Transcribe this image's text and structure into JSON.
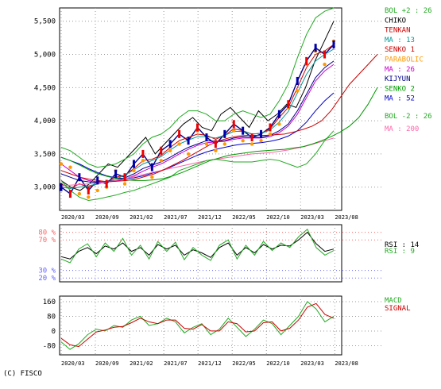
{
  "copyright": "(C) FISCO",
  "chart_data": [
    {
      "type": "line",
      "panel": "price",
      "title": "",
      "xlabel": "",
      "ylabel": "",
      "x_ticks": [
        "2020/03",
        "2020/09",
        "2021/02",
        "2021/07",
        "2021/12",
        "2022/05",
        "2022/10",
        "2023/03",
        "2023/08"
      ],
      "y_ticks": [
        3000,
        3500,
        4000,
        4500,
        5000,
        5500
      ],
      "y_tick_labels": [
        "3,000",
        "3,500",
        "4,000",
        "4,500",
        "5,000",
        "5,500"
      ],
      "ylim": [
        2650,
        5700
      ],
      "grid": true,
      "legend_position": "right",
      "legend": [
        {
          "label": "BOL +2 : 26",
          "color": "#22aa22"
        },
        {
          "label": "CHIKO",
          "color": "#000000"
        },
        {
          "label": "TENKAN",
          "color": "#cc0000"
        },
        {
          "label": "MA : 13",
          "color": "#009999"
        },
        {
          "label": "SENKO 1",
          "color": "#cc0000"
        },
        {
          "label": "PARABOLIC",
          "color": "#ff9900"
        },
        {
          "label": "MA : 26",
          "color": "#cc00cc"
        },
        {
          "label": "KIJYUN",
          "color": "#000088"
        },
        {
          "label": "SENKO 2",
          "color": "#009900"
        },
        {
          "label": "MA : 52",
          "color": "#0000cc"
        },
        {
          "label": "BOL -2 : 26",
          "color": "#22aa22"
        },
        {
          "label": "MA : 200",
          "color": "#ff66aa"
        }
      ],
      "series": [
        {
          "name": "CHIKO",
          "color": "#000000",
          "values": [
            3100,
            3000,
            2950,
            3050,
            3200,
            3350,
            3300,
            3450,
            3600,
            3750,
            3500,
            3650,
            3800,
            3950,
            4050,
            3900,
            3850,
            4100,
            4200,
            4050,
            3900,
            4150,
            4000,
            4100,
            4250,
            4200,
            4500,
            4900,
            5200,
            5500
          ]
        },
        {
          "name": "PRICE",
          "color": "#000088",
          "values": [
            3000,
            2900,
            3150,
            2950,
            3100,
            3050,
            3200,
            3150,
            3350,
            3500,
            3300,
            3550,
            3650,
            3800,
            3700,
            3900,
            3750,
            3650,
            3800,
            3950,
            3850,
            3750,
            3800,
            3900,
            4100,
            4250,
            4600,
            4900,
            5100,
            5000,
            5150
          ]
        },
        {
          "name": "TENKAN",
          "color": "#cc0000",
          "values": [
            3050,
            2980,
            3050,
            3000,
            3050,
            3080,
            3150,
            3180,
            3280,
            3400,
            3420,
            3480,
            3600,
            3700,
            3750,
            3800,
            3780,
            3720,
            3780,
            3880,
            3850,
            3800,
            3810,
            3880,
            4050,
            4200,
            4500,
            4800,
            5000,
            5050,
            5150
          ]
        },
        {
          "name": "MA : 13",
          "color": "#009999",
          "values": [
            3000,
            2980,
            3000,
            3020,
            3050,
            3080,
            3120,
            3180,
            3260,
            3350,
            3400,
            3460,
            3560,
            3650,
            3710,
            3760,
            3760,
            3740,
            3780,
            3840,
            3840,
            3800,
            3810,
            3860,
            3980,
            4140,
            4420,
            4700,
            4900,
            5000,
            5080
          ]
        },
        {
          "name": "KIJYUN",
          "color": "#000088",
          "values": [
            3200,
            3150,
            3100,
            3080,
            3070,
            3090,
            3100,
            3140,
            3200,
            3280,
            3330,
            3380,
            3450,
            3530,
            3600,
            3650,
            3700,
            3690,
            3700,
            3740,
            3760,
            3750,
            3750,
            3780,
            3850,
            3950,
            4150,
            4400,
            4650,
            4800,
            4900
          ]
        },
        {
          "name": "MA : 26",
          "color": "#cc00cc",
          "values": [
            3350,
            3250,
            3150,
            3100,
            3080,
            3080,
            3090,
            3120,
            3170,
            3240,
            3300,
            3350,
            3420,
            3500,
            3570,
            3630,
            3670,
            3680,
            3690,
            3720,
            3740,
            3740,
            3740,
            3760,
            3820,
            3920,
            4100,
            4350,
            4600,
            4750,
            4850
          ]
        },
        {
          "name": "MA : 52",
          "color": "#0000cc",
          "values": [
            3450,
            3400,
            3350,
            3280,
            3220,
            3170,
            3140,
            3130,
            3140,
            3170,
            3210,
            3250,
            3300,
            3360,
            3420,
            3480,
            3530,
            3570,
            3600,
            3630,
            3650,
            3660,
            3670,
            3690,
            3720,
            3770,
            3850,
            3980,
            4150,
            4300,
            4420
          ]
        },
        {
          "name": "MA : 200",
          "color": "#ff66aa",
          "values": [
            3020,
            3030,
            3040,
            3050,
            3060,
            3080,
            3100,
            3130,
            3160,
            3190,
            3220,
            3250,
            3280,
            3310,
            3340,
            3370,
            3400,
            3420,
            3440,
            3460,
            3480,
            3500,
            3510,
            3520,
            3540,
            3560,
            3590,
            3620,
            3660,
            3700,
            3740
          ]
        },
        {
          "name": "BOL +2 : 26",
          "color": "#22aa22",
          "values": [
            3600,
            3550,
            3450,
            3350,
            3300,
            3320,
            3350,
            3420,
            3500,
            3650,
            3750,
            3800,
            3900,
            4050,
            4150,
            4150,
            4100,
            4000,
            4000,
            4100,
            4150,
            4100,
            4050,
            4100,
            4300,
            4550,
            4950,
            5300,
            5550,
            5650,
            5700
          ]
        },
        {
          "name": "BOL -2 : 26",
          "color": "#22aa22",
          "values": [
            3100,
            2950,
            2850,
            2800,
            2820,
            2850,
            2880,
            2920,
            2950,
            3000,
            3050,
            3100,
            3150,
            3250,
            3300,
            3350,
            3400,
            3420,
            3400,
            3380,
            3380,
            3380,
            3400,
            3420,
            3400,
            3350,
            3300,
            3350,
            3500,
            3700,
            3850
          ]
        },
        {
          "name": "SENKO 1",
          "color": "#cc0000",
          "values": [
            3250,
            3200,
            3150,
            3120,
            3100,
            3080,
            3090,
            3100,
            3120,
            3160,
            3200,
            3260,
            3330,
            3400,
            3480,
            3560,
            3640,
            3700,
            3740,
            3770,
            3780,
            3780,
            3780,
            3790,
            3800,
            3830,
            3870,
            3920,
            4000,
            4150,
            4350,
            4550,
            4700,
            4850,
            5000
          ]
        },
        {
          "name": "SENKO 2",
          "color": "#009900",
          "values": [
            3450,
            3400,
            3330,
            3260,
            3200,
            3160,
            3130,
            3110,
            3100,
            3100,
            3110,
            3130,
            3170,
            3220,
            3280,
            3340,
            3400,
            3440,
            3480,
            3500,
            3520,
            3540,
            3550,
            3560,
            3570,
            3590,
            3610,
            3650,
            3700,
            3760,
            3830,
            3920,
            4050,
            4250,
            4500
          ]
        },
        {
          "name": "PARABOLIC",
          "color": "#ff9900",
          "values": [
            3350,
            3300,
            2900,
            2850,
            2950,
            3000,
            3250,
            3050,
            3250,
            3400,
            3150,
            3400,
            3550,
            3650,
            3500,
            3850,
            3650,
            3550,
            3650,
            3850,
            3700,
            3650,
            3700,
            3800,
            3950,
            4200,
            4450,
            4850,
            5050,
            4850,
            5200
          ]
        }
      ]
    },
    {
      "type": "line",
      "panel": "rsi",
      "x_ticks": [],
      "y_ticks": [
        20,
        30,
        70,
        80
      ],
      "y_tick_labels": [
        "20 %",
        "30 %",
        "70 %",
        "80 %"
      ],
      "ylim": [
        15,
        90
      ],
      "grid": true,
      "legend_position": "right",
      "legend": [
        {
          "label": "RSI : 14",
          "color": "#000000"
        },
        {
          "label": "RSI : 9",
          "color": "#22aa22"
        }
      ],
      "series": [
        {
          "name": "RSI : 14",
          "color": "#000000",
          "values": [
            48,
            45,
            55,
            60,
            52,
            62,
            58,
            66,
            55,
            60,
            50,
            64,
            58,
            63,
            50,
            57,
            53,
            47,
            60,
            66,
            50,
            60,
            53,
            64,
            58,
            63,
            62,
            70,
            80,
            65,
            55,
            58
          ]
        },
        {
          "name": "RSI : 9",
          "color": "#22aa22",
          "values": [
            45,
            40,
            58,
            65,
            48,
            66,
            55,
            72,
            50,
            63,
            45,
            68,
            55,
            67,
            44,
            60,
            50,
            43,
            63,
            70,
            45,
            63,
            50,
            68,
            56,
            66,
            60,
            74,
            84,
            60,
            50,
            56
          ]
        }
      ]
    },
    {
      "type": "line",
      "panel": "macd",
      "x_ticks": [
        "2020/03",
        "2020/09",
        "2021/02",
        "2021/07",
        "2021/12",
        "2022/05",
        "2022/10",
        "2023/03",
        "2023/08"
      ],
      "y_ticks": [
        -80,
        0,
        80,
        160
      ],
      "y_tick_labels": [
        "-80",
        "0",
        "80",
        "160"
      ],
      "ylim": [
        -130,
        190
      ],
      "grid": true,
      "legend_position": "right",
      "legend": [
        {
          "label": "MACD",
          "color": "#22aa22"
        },
        {
          "label": "SIGNAL",
          "color": "#cc0000"
        }
      ],
      "series": [
        {
          "name": "MACD",
          "color": "#22aa22",
          "values": [
            -60,
            -100,
            -70,
            -20,
            10,
            0,
            30,
            20,
            60,
            80,
            30,
            40,
            70,
            50,
            -10,
            20,
            40,
            -20,
            10,
            70,
            20,
            -30,
            10,
            60,
            40,
            -20,
            30,
            80,
            160,
            120,
            50,
            80
          ]
        },
        {
          "name": "SIGNAL",
          "color": "#cc0000",
          "values": [
            -40,
            -75,
            -85,
            -45,
            -5,
            5,
            20,
            25,
            45,
            70,
            50,
            40,
            60,
            60,
            15,
            10,
            35,
            0,
            0,
            50,
            40,
            -5,
            0,
            45,
            50,
            0,
            15,
            60,
            130,
            150,
            90,
            70
          ]
        }
      ]
    }
  ]
}
